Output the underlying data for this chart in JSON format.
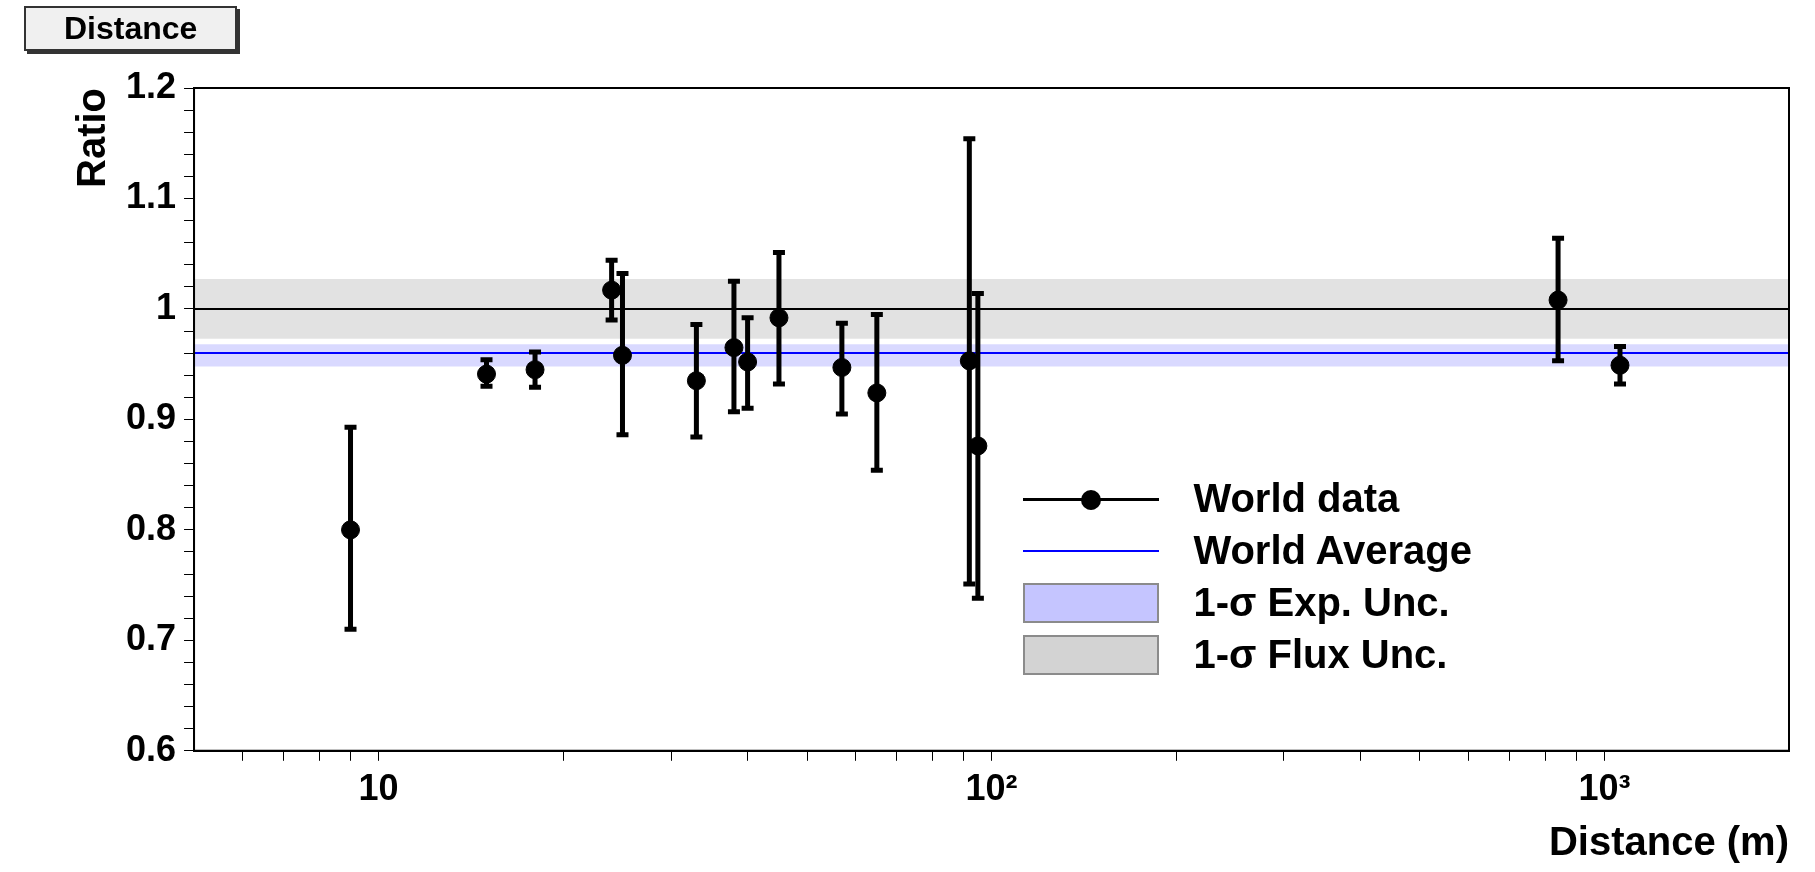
{
  "chart_data": {
    "type": "scatter",
    "title": "Distance",
    "xlabel": "Distance (m)",
    "ylabel": "Ratio",
    "log": "x",
    "grid": false,
    "legend": "bottom right",
    "marker": "circle",
    "xlim": [
      5,
      2000
    ],
    "ylim": [
      0.6,
      1.2
    ],
    "xticks": [
      {
        "value": 6,
        "label": null
      },
      {
        "value": 7,
        "label": null
      },
      {
        "value": 8,
        "label": null
      },
      {
        "value": 9,
        "label": null
      },
      {
        "value": 10,
        "label": "10"
      },
      {
        "value": 20,
        "label": null
      },
      {
        "value": 30,
        "label": null
      },
      {
        "value": 40,
        "label": null
      },
      {
        "value": 50,
        "label": null
      },
      {
        "value": 60,
        "label": null
      },
      {
        "value": 70,
        "label": null
      },
      {
        "value": 80,
        "label": null
      },
      {
        "value": 90,
        "label": null
      },
      {
        "value": 100,
        "label": "10²"
      },
      {
        "value": 200,
        "label": null
      },
      {
        "value": 300,
        "label": null
      },
      {
        "value": 400,
        "label": null
      },
      {
        "value": 500,
        "label": null
      },
      {
        "value": 600,
        "label": null
      },
      {
        "value": 700,
        "label": null
      },
      {
        "value": 800,
        "label": null
      },
      {
        "value": 900,
        "label": null
      },
      {
        "value": 1000,
        "label": "10³"
      }
    ],
    "yticks": [
      0.6,
      {
        "value": 0.62,
        "label": null
      },
      {
        "value": 0.64,
        "label": null
      },
      {
        "value": 0.66,
        "label": null
      },
      {
        "value": 0.68,
        "label": null
      },
      0.7,
      {
        "value": 0.72,
        "label": null
      },
      {
        "value": 0.74,
        "label": null
      },
      {
        "value": 0.76,
        "label": null
      },
      {
        "value": 0.78,
        "label": null
      },
      0.8,
      {
        "value": 0.82,
        "label": null
      },
      {
        "value": 0.84,
        "label": null
      },
      {
        "value": 0.86,
        "label": null
      },
      {
        "value": 0.88,
        "label": null
      },
      0.9,
      {
        "value": 0.92,
        "label": null
      },
      {
        "value": 0.94,
        "label": null
      },
      {
        "value": 0.96,
        "label": null
      },
      {
        "value": 0.98,
        "label": null
      },
      1,
      {
        "value": 1.02,
        "label": null
      },
      {
        "value": 1.04,
        "label": null
      },
      {
        "value": 1.06,
        "label": null
      },
      {
        "value": 1.08,
        "label": null
      },
      1.1,
      {
        "value": 1.12,
        "label": null
      },
      {
        "value": 1.14,
        "label": null
      },
      {
        "value": 1.16,
        "label": null
      },
      {
        "value": 1.18,
        "label": null
      },
      1.2
    ],
    "series": [
      {
        "name": "World data",
        "color": "#000000",
        "x": [
          9,
          15,
          18,
          24,
          25,
          33,
          38,
          40,
          45,
          57,
          65,
          92,
          95,
          840,
          1060
        ],
        "values": [
          0.8,
          0.941,
          0.945,
          1.017,
          0.958,
          0.935,
          0.965,
          0.952,
          0.992,
          0.947,
          0.924,
          0.953,
          0.876,
          1.008,
          0.949
        ],
        "errors": [
          [
            0.71,
            0.893
          ],
          [
            0.93,
            0.954
          ],
          [
            0.929,
            0.961
          ],
          [
            0.99,
            1.044
          ],
          [
            0.886,
            1.032
          ],
          [
            0.884,
            0.986
          ],
          [
            0.907,
            1.025
          ],
          [
            0.91,
            0.992
          ],
          [
            0.932,
            1.051
          ],
          [
            0.905,
            0.987
          ],
          [
            0.854,
            0.995
          ],
          [
            0.751,
            1.154
          ],
          [
            0.738,
            1.014
          ],
          [
            0.953,
            1.064
          ],
          [
            0.932,
            0.966
          ]
        ]
      }
    ],
    "ref_lines": [
      {
        "axis": "y",
        "value": 1,
        "color": "#000000"
      },
      {
        "axis": "y",
        "value": 0.96,
        "label": "World Average",
        "color": "#0000ff"
      }
    ],
    "bands": [
      {
        "axis": "y",
        "from": 0.948,
        "to": 0.968,
        "label": "1-σ Exp. Unc.",
        "color": "#8080ff"
      },
      {
        "axis": "y",
        "from": 0.973,
        "to": 1.027,
        "label": "1-σ Flux Unc.",
        "color": "#a0a0a0"
      }
    ]
  }
}
